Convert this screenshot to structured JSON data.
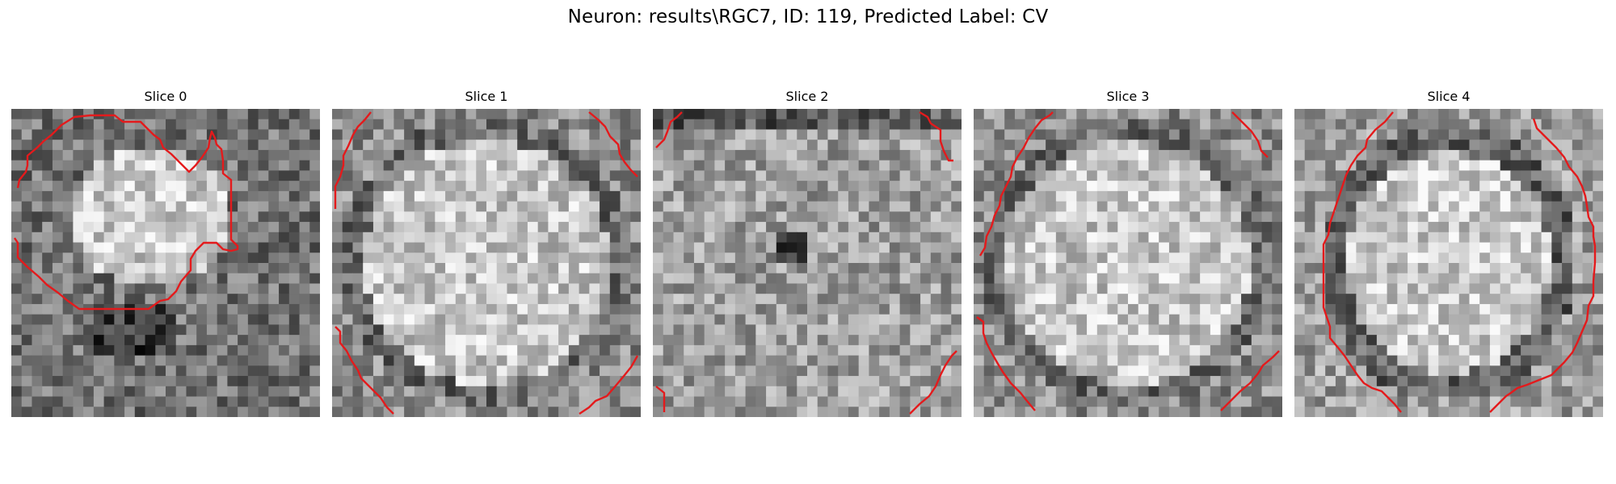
{
  "figure": {
    "title": "Neuron: results\\RGC7, ID: 119, Predicted Label: CV"
  },
  "panels": [
    {
      "title": "Slice 0",
      "pattern": "blob-left",
      "seed": 11
    },
    {
      "title": "Slice 1",
      "pattern": "disc",
      "seed": 23
    },
    {
      "title": "Slice 2",
      "pattern": "textured",
      "seed": 37
    },
    {
      "title": "Slice 3",
      "pattern": "disc",
      "seed": 41
    },
    {
      "title": "Slice 4",
      "pattern": "ring",
      "seed": 53
    }
  ],
  "colors": {
    "contour": "#e41a1c",
    "background": "#ffffff"
  }
}
